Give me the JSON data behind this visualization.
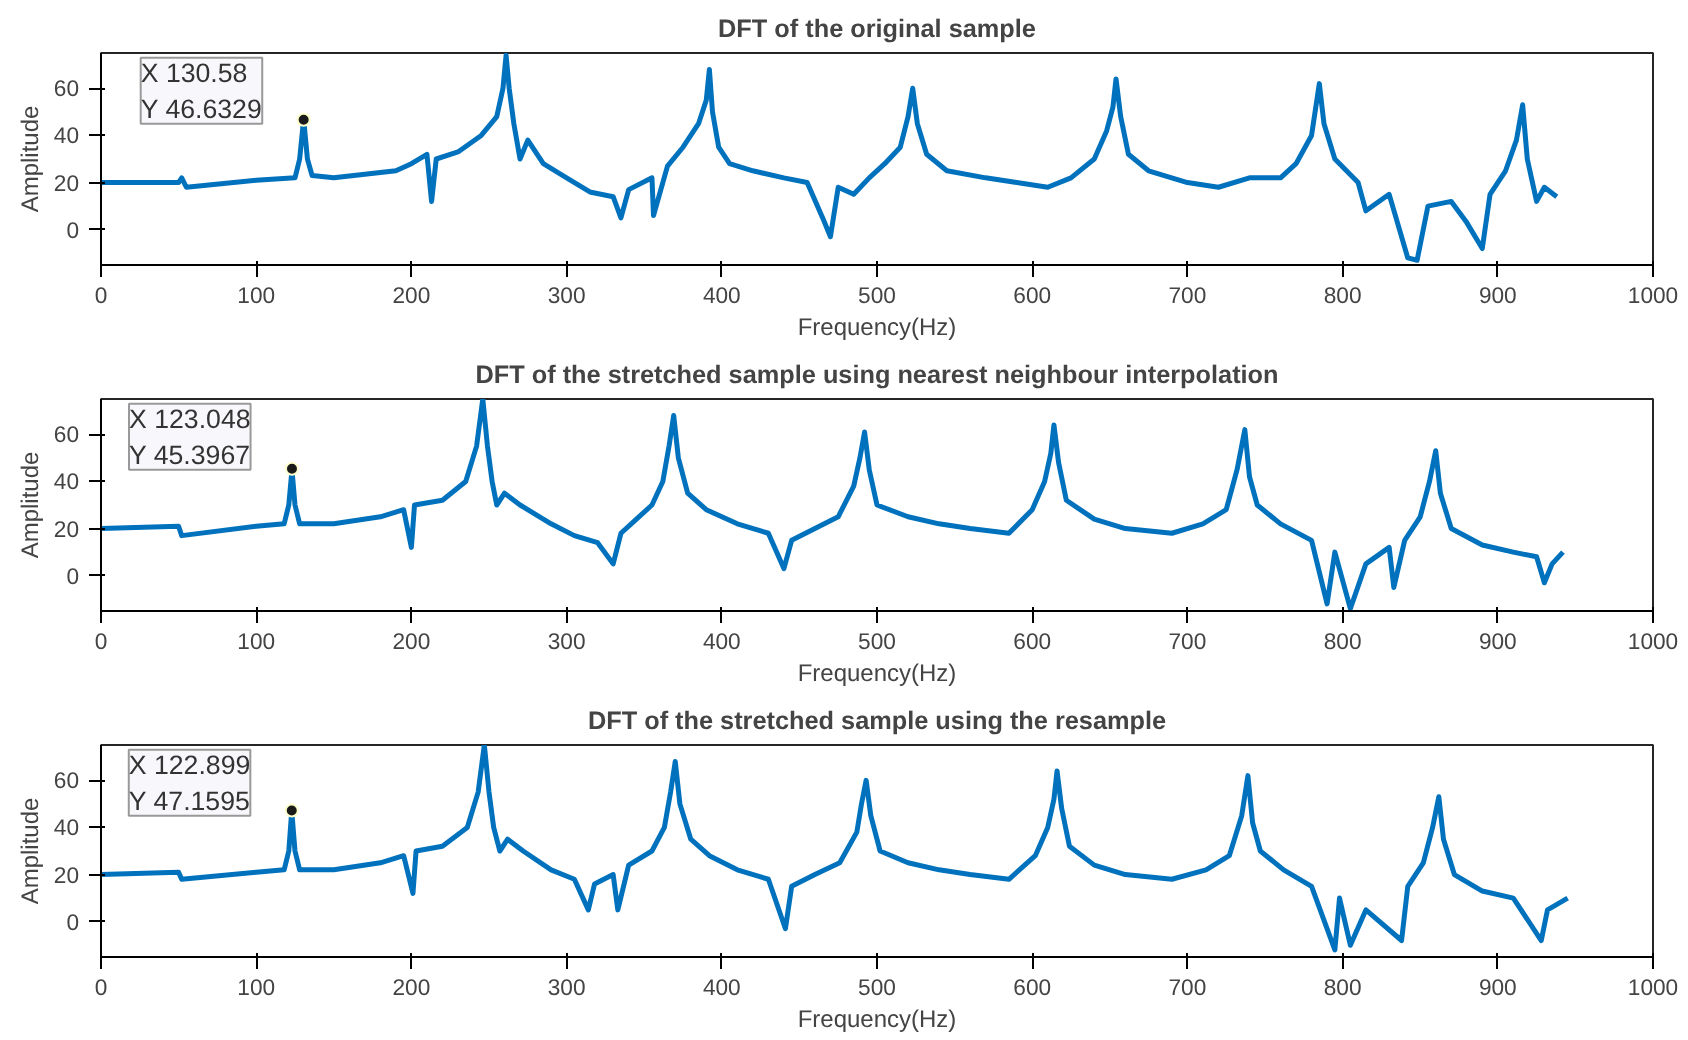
{
  "chart_data": [
    {
      "type": "line",
      "title": "DFT of the original sample",
      "xlabel": "Frequency(Hz)",
      "ylabel": "Amplitude",
      "xlim": [
        0,
        1000
      ],
      "ylim": [
        -15,
        75
      ],
      "xticks": [
        0,
        100,
        200,
        300,
        400,
        500,
        600,
        700,
        800,
        900,
        1000
      ],
      "yticks": [
        0,
        20,
        40,
        60
      ],
      "grid": false,
      "marker": "none",
      "line_style": "solid",
      "annotations": [
        {
          "text": "X 130.58\nY 46.6329",
          "x": 130.58,
          "y": 46.6329
        }
      ],
      "series": [
        {
          "color": "#0072bd",
          "x": [
            0,
            50,
            52,
            55,
            100,
            125,
            128,
            130.58,
            133,
            136,
            150,
            190,
            200,
            210,
            213,
            216,
            230,
            245,
            255,
            259,
            261,
            263,
            266,
            270,
            275,
            285,
            300,
            315,
            330,
            335,
            340,
            355,
            356,
            365,
            375,
            385,
            390,
            392,
            394,
            398,
            405,
            420,
            440,
            455,
            465,
            470,
            475,
            485,
            495,
            505,
            515,
            520,
            523,
            526,
            532,
            545,
            570,
            590,
            610,
            625,
            640,
            648,
            652,
            654,
            657,
            662,
            675,
            700,
            720,
            740,
            760,
            770,
            780,
            785,
            788,
            795,
            810,
            815,
            830,
            842,
            848,
            855,
            870,
            880,
            890,
            895,
            905,
            912,
            916,
            919,
            925,
            930,
            938
          ],
          "values": [
            20,
            20,
            22,
            18,
            21,
            22,
            30,
            47,
            30,
            23,
            22,
            25,
            28,
            32,
            12,
            30,
            33,
            40,
            48,
            60,
            74,
            60,
            45,
            30,
            38,
            28,
            22,
            16,
            14,
            5,
            17,
            22,
            6,
            27,
            35,
            45,
            55,
            68,
            50,
            35,
            28,
            25,
            22,
            20,
            5,
            -3,
            18,
            15,
            22,
            28,
            35,
            48,
            60,
            45,
            32,
            25,
            22,
            20,
            18,
            22,
            30,
            42,
            52,
            64,
            48,
            32,
            25,
            20,
            18,
            22,
            22,
            28,
            40,
            62,
            45,
            30,
            20,
            8,
            15,
            -12,
            -13,
            10,
            12,
            3,
            -8,
            15,
            25,
            38,
            53,
            30,
            12,
            18,
            14
          ]
        }
      ]
    },
    {
      "type": "line",
      "title": "DFT of the stretched sample using nearest neighbour interpolation",
      "xlabel": "Frequency(Hz)",
      "ylabel": "Amplitude",
      "xlim": [
        0,
        1000
      ],
      "ylim": [
        -15,
        75
      ],
      "xticks": [
        0,
        100,
        200,
        300,
        400,
        500,
        600,
        700,
        800,
        900,
        1000
      ],
      "yticks": [
        0,
        20,
        40,
        60
      ],
      "grid": false,
      "marker": "none",
      "line_style": "solid",
      "annotations": [
        {
          "text": "X 123.048\nY 45.3967",
          "x": 123.048,
          "y": 45.3967
        }
      ],
      "series": [
        {
          "color": "#0072bd",
          "x": [
            0,
            50,
            52,
            100,
            118,
            121,
            123.048,
            125,
            128,
            150,
            180,
            195,
            200,
            202,
            220,
            235,
            242,
            246,
            249,
            252,
            255,
            260,
            270,
            290,
            305,
            320,
            330,
            335,
            345,
            355,
            362,
            366,
            369,
            372,
            378,
            390,
            410,
            430,
            440,
            445,
            460,
            475,
            485,
            489,
            492,
            495,
            500,
            520,
            540,
            560,
            585,
            600,
            608,
            612,
            614,
            617,
            622,
            640,
            660,
            690,
            710,
            725,
            732,
            737,
            740,
            745,
            760,
            780,
            790,
            795,
            805,
            815,
            830,
            833,
            840,
            850,
            856,
            860,
            863,
            870,
            890,
            910,
            925,
            930,
            935,
            942
          ],
          "values": [
            20,
            21,
            17,
            21,
            22,
            30,
            45,
            30,
            22,
            22,
            25,
            28,
            12,
            30,
            32,
            40,
            55,
            75,
            55,
            40,
            30,
            35,
            30,
            22,
            17,
            14,
            5,
            18,
            24,
            30,
            40,
            55,
            68,
            50,
            35,
            28,
            22,
            18,
            3,
            15,
            20,
            25,
            38,
            50,
            61,
            45,
            30,
            25,
            22,
            20,
            18,
            28,
            40,
            52,
            64,
            48,
            32,
            24,
            20,
            18,
            22,
            28,
            45,
            62,
            42,
            30,
            22,
            15,
            -12,
            10,
            -14,
            5,
            12,
            -5,
            15,
            25,
            40,
            53,
            35,
            20,
            13,
            10,
            8,
            -3,
            5,
            10
          ]
        }
      ]
    },
    {
      "type": "line",
      "title": "DFT of the stretched sample using the resample",
      "xlabel": "Frequency(Hz)",
      "ylabel": "Amplitude",
      "xlim": [
        0,
        1000
      ],
      "ylim": [
        -15,
        75
      ],
      "xticks": [
        0,
        100,
        200,
        300,
        400,
        500,
        600,
        700,
        800,
        900,
        1000
      ],
      "yticks": [
        0,
        20,
        40,
        60
      ],
      "grid": false,
      "marker": "none",
      "line_style": "solid",
      "annotations": [
        {
          "text": "X 122.899\nY 47.1595",
          "x": 122.899,
          "y": 47.1595
        }
      ],
      "series": [
        {
          "color": "#0072bd",
          "x": [
            0,
            50,
            52,
            100,
            118,
            121,
            122.899,
            125,
            128,
            150,
            180,
            195,
            201,
            203,
            220,
            236,
            243,
            247,
            250,
            253,
            257,
            262,
            272,
            290,
            305,
            314,
            318,
            330,
            333,
            340,
            355,
            363,
            367,
            370,
            373,
            380,
            392,
            410,
            430,
            441,
            445,
            460,
            476,
            487,
            490,
            493,
            496,
            502,
            520,
            540,
            560,
            585,
            602,
            610,
            614,
            616,
            619,
            624,
            640,
            660,
            690,
            712,
            727,
            735,
            739,
            742,
            747,
            762,
            780,
            795,
            798,
            805,
            815,
            838,
            842,
            852,
            858,
            862,
            865,
            872,
            890,
            910,
            928,
            932,
            945
          ],
          "values": [
            20,
            21,
            18,
            21,
            22,
            30,
            47,
            30,
            22,
            22,
            25,
            28,
            12,
            30,
            32,
            40,
            55,
            75,
            55,
            40,
            30,
            35,
            30,
            22,
            18,
            5,
            16,
            20,
            5,
            24,
            30,
            40,
            55,
            68,
            50,
            35,
            28,
            22,
            18,
            -3,
            15,
            20,
            25,
            38,
            50,
            60,
            45,
            30,
            25,
            22,
            20,
            18,
            28,
            40,
            52,
            64,
            48,
            32,
            24,
            20,
            18,
            22,
            28,
            45,
            62,
            42,
            30,
            22,
            15,
            -12,
            10,
            -10,
            5,
            -8,
            15,
            25,
            40,
            53,
            35,
            20,
            13,
            10,
            -8,
            5,
            10
          ]
        }
      ]
    }
  ]
}
